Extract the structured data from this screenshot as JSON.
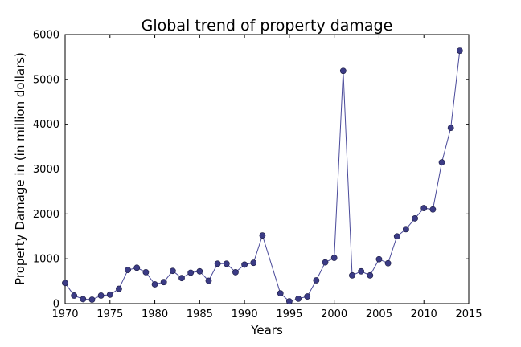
{
  "chart_data": {
    "type": "line",
    "title": "Global trend of property damage",
    "xlabel": "Years",
    "ylabel": "Property Damage in (in million dollars)",
    "xlim": [
      1970,
      2015
    ],
    "ylim": [
      0,
      6000
    ],
    "xticks": [
      1970,
      1975,
      1980,
      1985,
      1990,
      1995,
      2000,
      2005,
      2010,
      2015
    ],
    "yticks": [
      0,
      1000,
      2000,
      3000,
      4000,
      5000,
      6000
    ],
    "grid": false,
    "line_color": "#4a4a9a",
    "marker_color": "#3b3b85",
    "x": [
      1970,
      1971,
      1972,
      1973,
      1974,
      1975,
      1976,
      1977,
      1978,
      1979,
      1980,
      1981,
      1982,
      1983,
      1984,
      1985,
      1986,
      1987,
      1988,
      1989,
      1990,
      1991,
      1992,
      1994,
      1995,
      1996,
      1997,
      1998,
      1999,
      2000,
      2001,
      2002,
      2003,
      2004,
      2005,
      2006,
      2007,
      2008,
      2009,
      2010,
      2011,
      2012,
      2013,
      2014
    ],
    "y": [
      460,
      180,
      100,
      90,
      180,
      200,
      330,
      750,
      800,
      700,
      430,
      480,
      730,
      570,
      690,
      720,
      510,
      890,
      890,
      700,
      870,
      910,
      1520,
      230,
      50,
      110,
      160,
      520,
      920,
      1020,
      5190,
      630,
      720,
      630,
      990,
      900,
      1500,
      1660,
      1900,
      2130,
      2100,
      3150,
      3920,
      5640
    ]
  }
}
